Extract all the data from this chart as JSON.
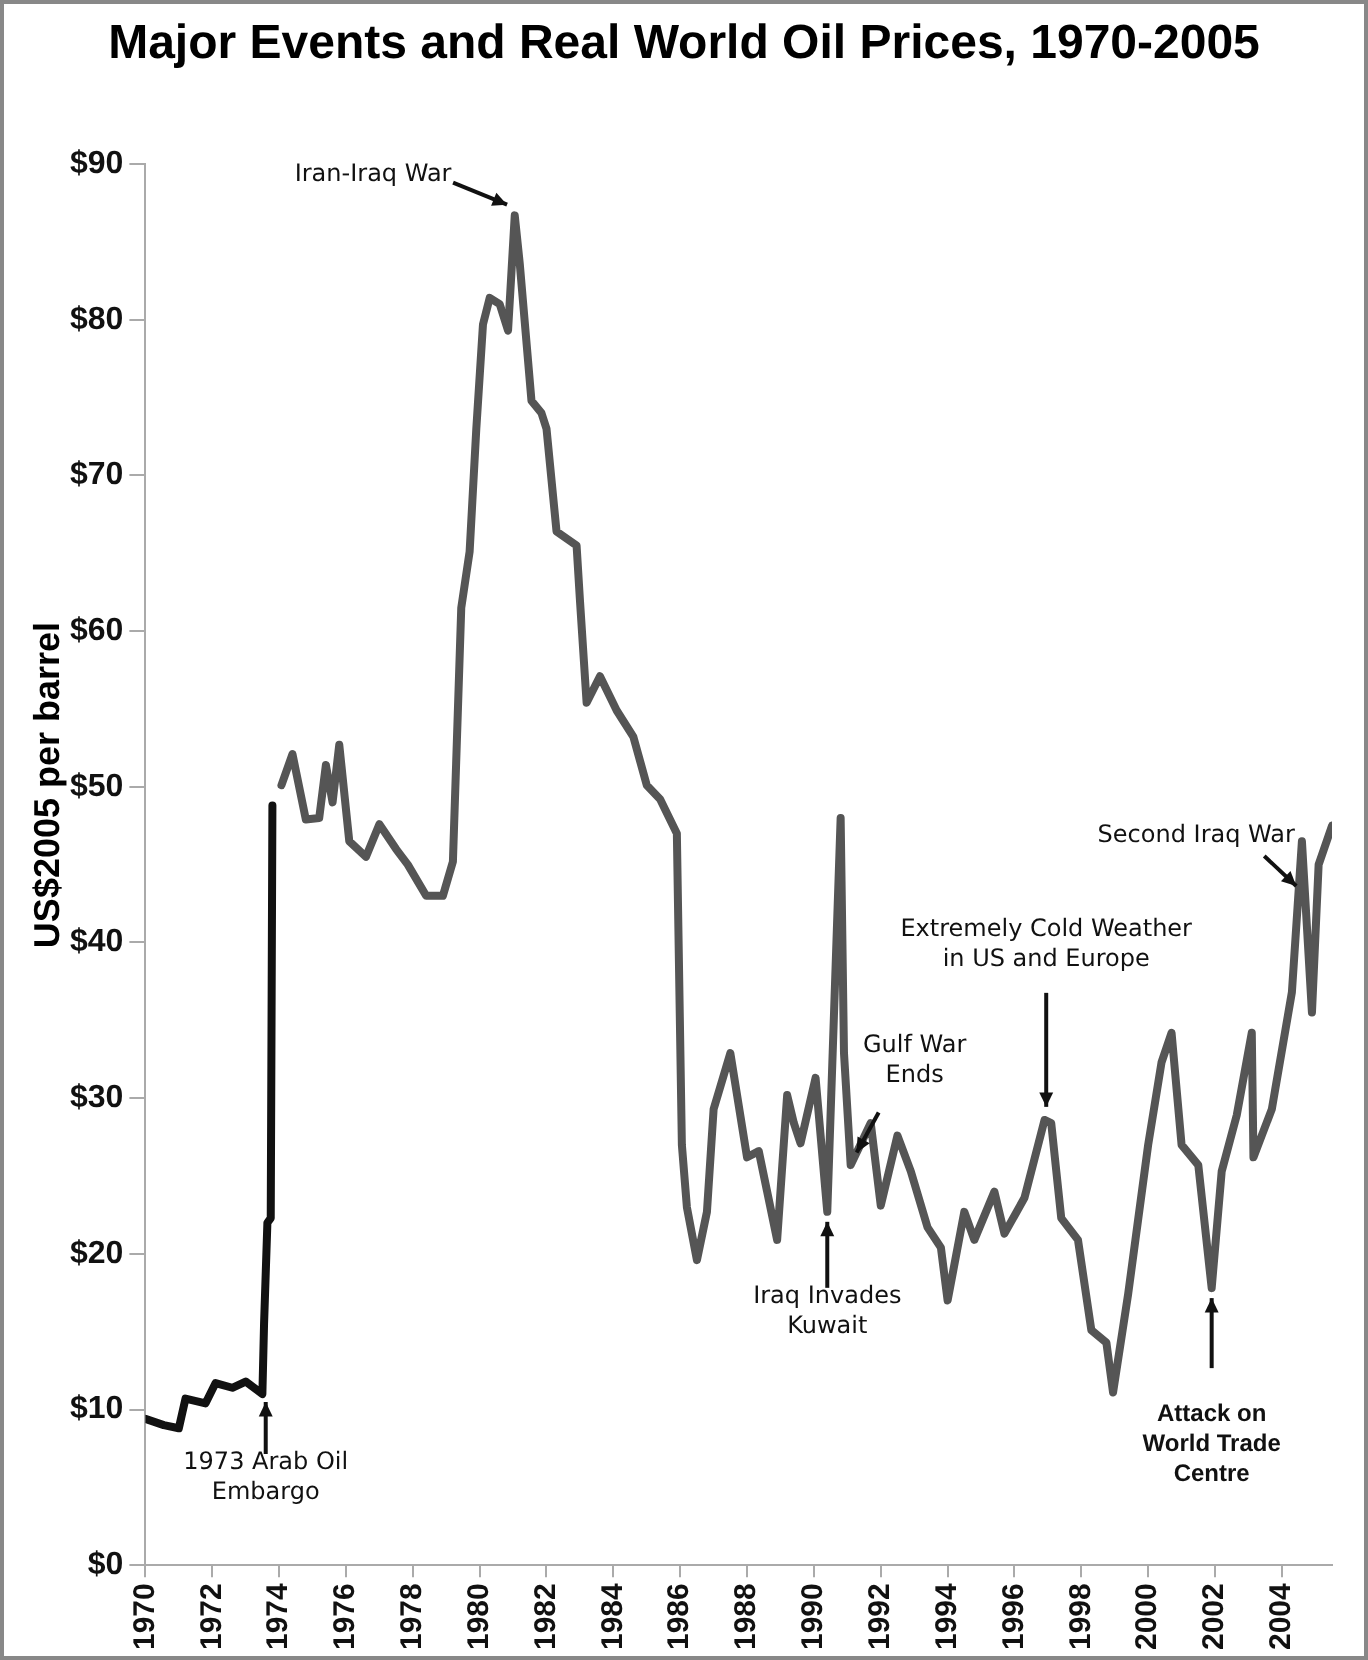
{
  "chart_data": {
    "type": "line",
    "title": "Major Events and Real World Oil Prices, 1970-2005",
    "ylabel": "US$2005 per barrel",
    "xlim": [
      1970,
      2005.5
    ],
    "xticks": [
      1970,
      1972,
      1974,
      1976,
      1978,
      1980,
      1982,
      1984,
      1986,
      1988,
      1990,
      1992,
      1994,
      1996,
      1998,
      2000,
      2002,
      2004
    ],
    "ylim": [
      0,
      90
    ],
    "yticks": [
      {
        "value": 0,
        "label": "$0"
      },
      {
        "value": 10,
        "label": "$10"
      },
      {
        "value": 20,
        "label": "$20"
      },
      {
        "value": 30,
        "label": "$30"
      },
      {
        "value": 40,
        "label": "$40"
      },
      {
        "value": 50,
        "label": "$50"
      },
      {
        "value": 60,
        "label": "$60"
      },
      {
        "value": 70,
        "label": "$70"
      },
      {
        "value": 80,
        "label": "$80"
      },
      {
        "value": 90,
        "label": "$90"
      }
    ],
    "grid": false,
    "legend": false,
    "marker": "none",
    "line_style": "solid",
    "series": [
      {
        "color": "#111111",
        "x": [
          1970,
          1970.55,
          1971,
          1971.2,
          1971.8,
          1972.1,
          1972.6,
          1973,
          1973.5,
          1973.55,
          1973.65,
          1973.75,
          1973.8
        ],
        "values": [
          9.4,
          9,
          8.8,
          10.7,
          10.4,
          11.7,
          11.4,
          11.8,
          11,
          15.5,
          22,
          22.3,
          48.8
        ]
      },
      {
        "color": "#555555",
        "x": [
          1974.07,
          1974.4,
          1974.8,
          1975.2,
          1975.4,
          1975.6,
          1975.8,
          1976.1,
          1976.6,
          1977,
          1977.5,
          1977.85,
          1978.4,
          1978.9,
          1979.2,
          1979.45,
          1979.7,
          1979.9,
          1980.1,
          1980.3,
          1980.6,
          1980.85,
          1981.05,
          1981.2,
          1981.55,
          1981.85,
          1982,
          1982.3,
          1982.9,
          1983,
          1983.2,
          1983.6,
          1984.1,
          1984.6,
          1985,
          1985.4,
          1985.9,
          1986.05,
          1986.2,
          1986.5,
          1986.8,
          1987,
          1987.5,
          1988,
          1988.35,
          1988.9,
          1989.2,
          1989.4,
          1989.6,
          1990.05,
          1990.4,
          1990.8,
          1990.9,
          1991.1,
          1991.7,
          1992,
          1992.5,
          1992.9,
          1993.4,
          1993.8,
          1994,
          1994.5,
          1994.8,
          1995.4,
          1995.7,
          1996.3,
          1996.9,
          1997.1,
          1997.4,
          1997.9,
          1998.3,
          1998.75,
          1998.95,
          1999.4,
          2000,
          2000.4,
          2000.7,
          2001,
          2001.5,
          2001.9,
          2002.2,
          2002.65,
          2003.1,
          2003.15,
          2003.7,
          2004.3,
          2004.6,
          2004.9,
          2005.1,
          2005.5
        ],
        "values": [
          50.1,
          52.1,
          47.9,
          48,
          51.4,
          49,
          52.7,
          46.5,
          45.5,
          47.6,
          46,
          45,
          43,
          43,
          45.2,
          61.5,
          65.1,
          73,
          79.7,
          81.4,
          81,
          79.3,
          86.7,
          83.6,
          74.8,
          74,
          73,
          66.4,
          65.5,
          62,
          55.4,
          57.1,
          54.9,
          53.2,
          50.1,
          49.2,
          47,
          27,
          23,
          19.6,
          22.7,
          29.3,
          32.9,
          26.2,
          26.6,
          20.9,
          30.2,
          28.4,
          27.1,
          31.3,
          22.7,
          48,
          32.9,
          25.7,
          28.4,
          23.1,
          27.6,
          25.3,
          21.7,
          20.4,
          17,
          22.7,
          20.9,
          24,
          21.3,
          23.6,
          28.6,
          28.4,
          22.3,
          20.9,
          15.1,
          14.3,
          11.1,
          17.4,
          27,
          32.3,
          34.2,
          27,
          25.7,
          17.8,
          25.3,
          28.9,
          34.2,
          26.2,
          29.3,
          36.8,
          46.5,
          35.5,
          45,
          47.5
        ]
      }
    ],
    "annotations": [
      {
        "text": "Iran-Iraq War",
        "x": 1981,
        "y": 87
      },
      {
        "text": "1973 Arab Oil Embargo",
        "x": 1973.6,
        "y": 11
      },
      {
        "text": "Iraq Invades Kuwait",
        "x": 1990.4,
        "y": 22.7
      },
      {
        "text": "Gulf War Ends",
        "x": 1991.1,
        "y": 26
      },
      {
        "text": "Extremely Cold Weather in US and Europe",
        "x": 1996.95,
        "y": 28.8
      },
      {
        "text": "Attack on World Trade Centre",
        "x": 2001.9,
        "y": 17.8
      },
      {
        "text": "Second Iraq War",
        "x": 2004.55,
        "y": 43.5
      }
    ]
  }
}
